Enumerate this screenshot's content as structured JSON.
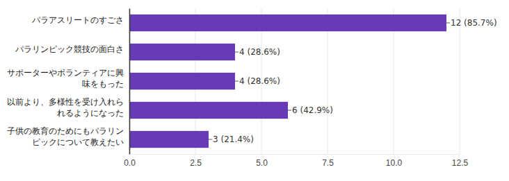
{
  "chart_data": {
    "type": "bar",
    "orientation": "horizontal",
    "categories": [
      "パラアスリートのすごさ",
      "パラリンピック競技の面白さ",
      "サポーターやボランティアに興味をもった",
      "以前より、多様性を受け入れられるようになった",
      "子供の教育のためにもパラリンピックについて教えたい"
    ],
    "values": [
      12,
      4,
      4,
      6,
      3
    ],
    "value_labels": [
      "12 (85.7%)",
      "4 (28.6%)",
      "4 (28.6%)",
      "6 (42.9%)",
      "3 (21.4%)"
    ],
    "color": "#673ab7",
    "xlim": [
      0,
      12.5
    ],
    "xticks": [
      {
        "value": 0,
        "label": "0.0"
      },
      2.5,
      {
        "value": 5,
        "label": "5.0"
      },
      7.5,
      {
        "value": 10,
        "label": "10.0"
      },
      12.5
    ],
    "grid": true,
    "data_labels": true
  }
}
